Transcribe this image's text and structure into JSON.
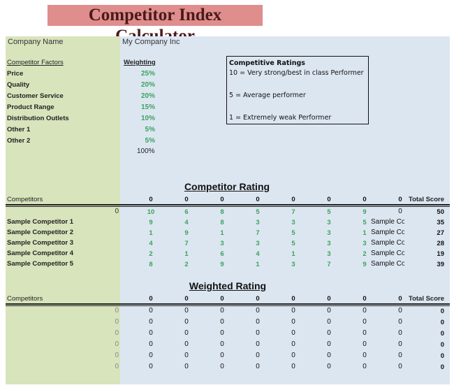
{
  "title": "Competitor Index Calculator",
  "company": {
    "label": "Company Name",
    "value": "My Company Inc"
  },
  "factors": {
    "header": "Competitor Factors",
    "weighting_header": "Weighting",
    "items": [
      {
        "name": "Price",
        "weight": "25%"
      },
      {
        "name": "Quality",
        "weight": "20%"
      },
      {
        "name": "Customer Service",
        "weight": "20%"
      },
      {
        "name": "Product Range",
        "weight": "15%"
      },
      {
        "name": "Distribution Outlets",
        "weight": "10%"
      },
      {
        "name": "Other 1",
        "weight": "5%"
      },
      {
        "name": "Other 2",
        "weight": "5%"
      }
    ],
    "total": "100%"
  },
  "ratings_legend": {
    "title": "Competitive Ratings",
    "lines": [
      "10 = Very strong/best in class Performer",
      "5 = Average performer",
      "1 = Extremely weak Performer"
    ]
  },
  "competitor_rating": {
    "title": "Competitor Rating",
    "col_label": "Competitors",
    "headers": [
      "0",
      "0",
      "0",
      "0",
      "0",
      "0",
      "0",
      "0"
    ],
    "total_label": "Total Score",
    "first_row": {
      "label": "0",
      "values": [
        "10",
        "6",
        "8",
        "5",
        "7",
        "5",
        "9"
      ],
      "extra": "0",
      "total": "50"
    },
    "rows": [
      {
        "name": "Sample Competitor 1",
        "values": [
          "9",
          "4",
          "8",
          "3",
          "3",
          "3",
          "5"
        ],
        "sample": "Sample Co",
        "total": "35"
      },
      {
        "name": "Sample Competitor 2",
        "values": [
          "1",
          "9",
          "1",
          "7",
          "5",
          "3",
          "1"
        ],
        "sample": "Sample Co",
        "total": "27"
      },
      {
        "name": "Sample Competitor 3",
        "values": [
          "4",
          "7",
          "3",
          "3",
          "5",
          "3",
          "3"
        ],
        "sample": "Sample Co",
        "total": "28"
      },
      {
        "name": "Sample Competitor 4",
        "values": [
          "2",
          "1",
          "6",
          "4",
          "1",
          "3",
          "2"
        ],
        "sample": "Sample Co",
        "total": "19"
      },
      {
        "name": "Sample Competitor 5",
        "values": [
          "8",
          "2",
          "9",
          "1",
          "3",
          "7",
          "9"
        ],
        "sample": "Sample Co",
        "total": "39"
      }
    ]
  },
  "weighted_rating": {
    "title": "Weighted Rating",
    "col_label": "Competitors",
    "headers": [
      "0",
      "0",
      "0",
      "0",
      "0",
      "0",
      "0",
      "0"
    ],
    "total_label": "Total Score",
    "rows": [
      {
        "label": "0",
        "values": [
          "0",
          "0",
          "0",
          "0",
          "0",
          "0",
          "0",
          "0"
        ],
        "total": "0"
      },
      {
        "label": "0",
        "values": [
          "0",
          "0",
          "0",
          "0",
          "0",
          "0",
          "0",
          "0"
        ],
        "total": "0"
      },
      {
        "label": "0",
        "values": [
          "0",
          "0",
          "0",
          "0",
          "0",
          "0",
          "0",
          "0"
        ],
        "total": "0"
      },
      {
        "label": "0",
        "values": [
          "0",
          "0",
          "0",
          "0",
          "0",
          "0",
          "0",
          "0"
        ],
        "total": "0"
      },
      {
        "label": "0",
        "values": [
          "0",
          "0",
          "0",
          "0",
          "0",
          "0",
          "0",
          "0"
        ],
        "total": "0"
      },
      {
        "label": "0",
        "values": [
          "0",
          "0",
          "0",
          "0",
          "0",
          "0",
          "0",
          "0"
        ],
        "total": "0"
      }
    ]
  },
  "colors": {
    "title_bg": "#df8d8d",
    "left_panel": "#d8e4bc",
    "right_panel": "#dce6f1",
    "accent_green": "#3ba35c"
  }
}
